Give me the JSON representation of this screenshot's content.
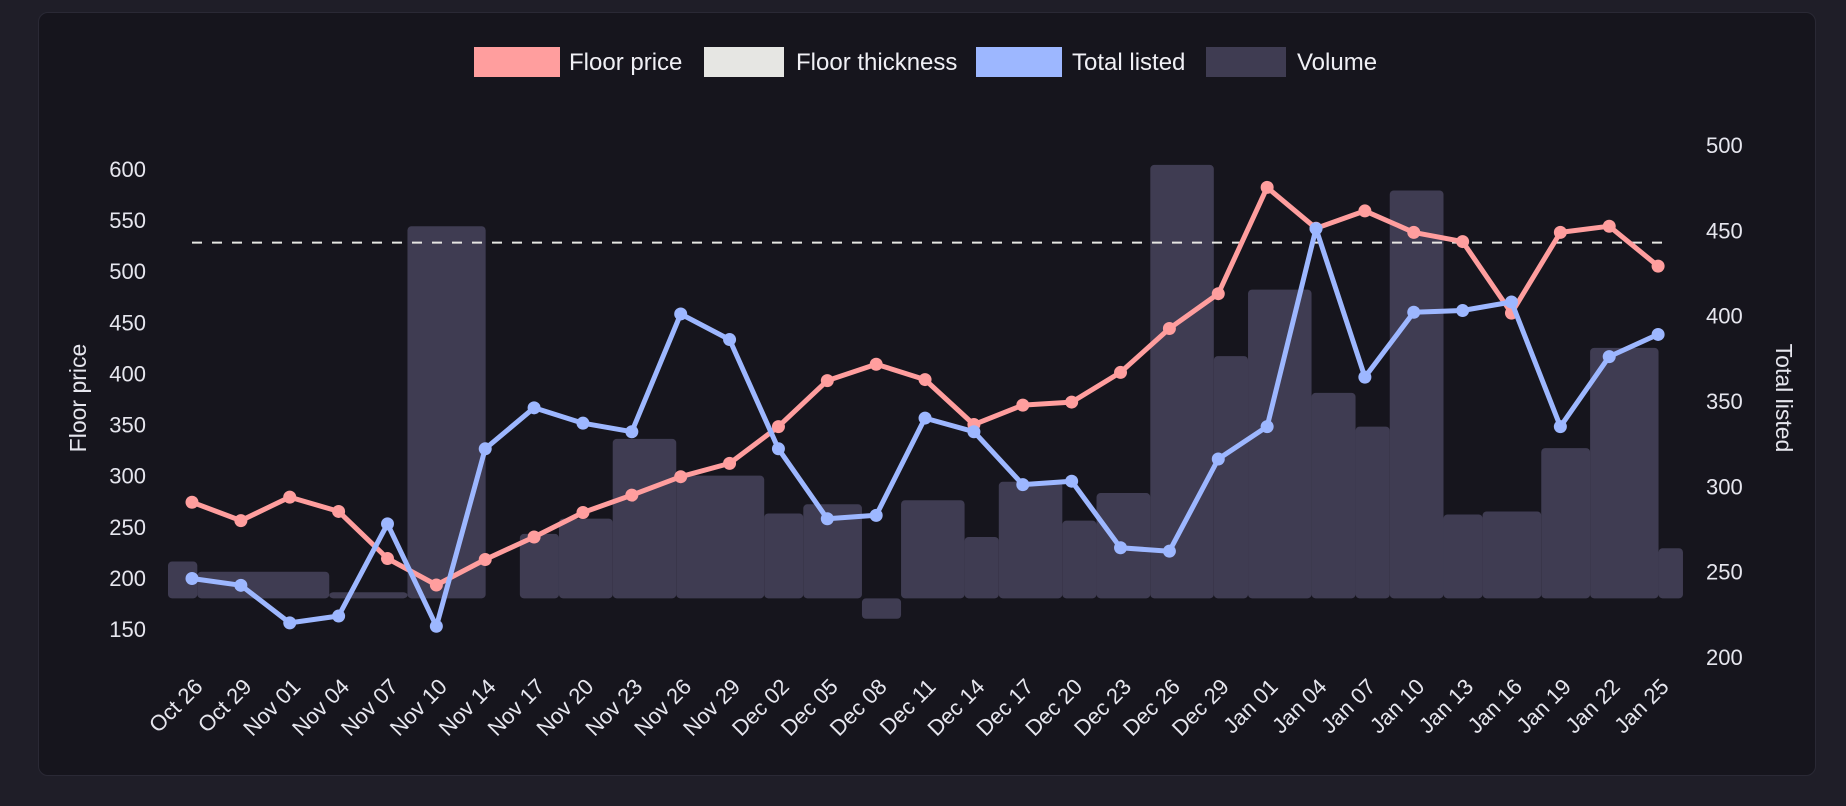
{
  "chart_data": {
    "type": "line",
    "legend": {
      "placement": "top-center",
      "entries": [
        {
          "label": "Floor price",
          "color": "#ff9e9e"
        },
        {
          "label": "Floor thickness",
          "color": "#e6e6e3"
        },
        {
          "label": "Total listed",
          "color": "#9db7ff"
        },
        {
          "label": "Volume",
          "color": "#3f3c52"
        }
      ]
    },
    "ylabel_left": "Floor price",
    "ylabel_right": "Total listed",
    "ylim_left": [
      125,
      620
    ],
    "ylim_right": [
      200,
      500
    ],
    "yticks_left": [
      150,
      200,
      250,
      300,
      350,
      400,
      450,
      500,
      550,
      600
    ],
    "yticks_right": [
      200,
      250,
      300,
      350,
      400,
      450,
      500
    ],
    "categories": [
      "Oct 26",
      "Oct 29",
      "Nov 01",
      "Nov 04",
      "Nov 07",
      "Nov 10",
      "Nov 14",
      "Nov 17",
      "Nov 20",
      "Nov 23",
      "Nov 26",
      "Nov 29",
      "Dec 02",
      "Dec 05",
      "Dec 08",
      "Dec 11",
      "Dec 14",
      "Dec 17",
      "Dec 20",
      "Dec 23",
      "Dec 26",
      "Dec 29",
      "Jan 01",
      "Jan 04",
      "Jan 07",
      "Jan 10",
      "Jan 13",
      "Jan 16",
      "Jan 19",
      "Jan 22",
      "Jan 25"
    ],
    "floor_thickness": 528,
    "series": [
      {
        "name": "Floor price",
        "axis": "left",
        "color": "#ff9e9e",
        "values": [
          274,
          256,
          279,
          265,
          219,
          193,
          218,
          240,
          264,
          281,
          299,
          312,
          348,
          393,
          409,
          394,
          350,
          369,
          372,
          401,
          444,
          478,
          582,
          542,
          559,
          538,
          529,
          459,
          538,
          544,
          505
        ]
      },
      {
        "name": "Total listed",
        "axis": "right",
        "color": "#9db7ff",
        "values": [
          246,
          242,
          220,
          224,
          278,
          218,
          322,
          346,
          337,
          332,
          401,
          386,
          322,
          281,
          283,
          340,
          332,
          301,
          303,
          264,
          262,
          316,
          335,
          451,
          364,
          402,
          403,
          408,
          335,
          376,
          389
        ]
      }
    ],
    "volume": {
      "name": "Volume",
      "axis": "left",
      "baseline": 180,
      "color": "#3f3c52",
      "steps": [
        {
          "from": 0,
          "to": 0.6,
          "value": 216
        },
        {
          "from": 0.6,
          "to": 3.3,
          "value": 206
        },
        {
          "from": 3.3,
          "to": 4.9,
          "value": 186
        },
        {
          "from": 4.9,
          "to": 6.5,
          "value": 544
        },
        {
          "from": 6.5,
          "to": 7.2,
          "value": 180
        },
        {
          "from": 7.2,
          "to": 8.0,
          "value": 243
        },
        {
          "from": 8.0,
          "to": 9.1,
          "value": 258
        },
        {
          "from": 9.1,
          "to": 10.4,
          "value": 336
        },
        {
          "from": 10.4,
          "to": 12.2,
          "value": 300
        },
        {
          "from": 12.2,
          "to": 13.0,
          "value": 263
        },
        {
          "from": 13.0,
          "to": 14.2,
          "value": 272
        },
        {
          "from": 14.2,
          "to": 15.0,
          "value": 160
        },
        {
          "from": 15.0,
          "to": 16.3,
          "value": 276
        },
        {
          "from": 16.3,
          "to": 17.0,
          "value": 240
        },
        {
          "from": 17.0,
          "to": 18.3,
          "value": 294
        },
        {
          "from": 18.3,
          "to": 19.0,
          "value": 256
        },
        {
          "from": 19.0,
          "to": 20.1,
          "value": 283
        },
        {
          "from": 20.1,
          "to": 21.4,
          "value": 604
        },
        {
          "from": 21.4,
          "to": 22.1,
          "value": 417
        },
        {
          "from": 22.1,
          "to": 23.4,
          "value": 482
        },
        {
          "from": 23.4,
          "to": 24.3,
          "value": 381
        },
        {
          "from": 24.3,
          "to": 25.0,
          "value": 348
        },
        {
          "from": 25.0,
          "to": 26.1,
          "value": 579
        },
        {
          "from": 26.1,
          "to": 26.9,
          "value": 262
        },
        {
          "from": 26.9,
          "to": 28.1,
          "value": 265
        },
        {
          "from": 28.1,
          "to": 29.1,
          "value": 327
        },
        {
          "from": 29.1,
          "to": 30.5,
          "value": 425
        },
        {
          "from": 30.5,
          "to": 31.0,
          "value": 229
        }
      ]
    },
    "grid": false
  }
}
